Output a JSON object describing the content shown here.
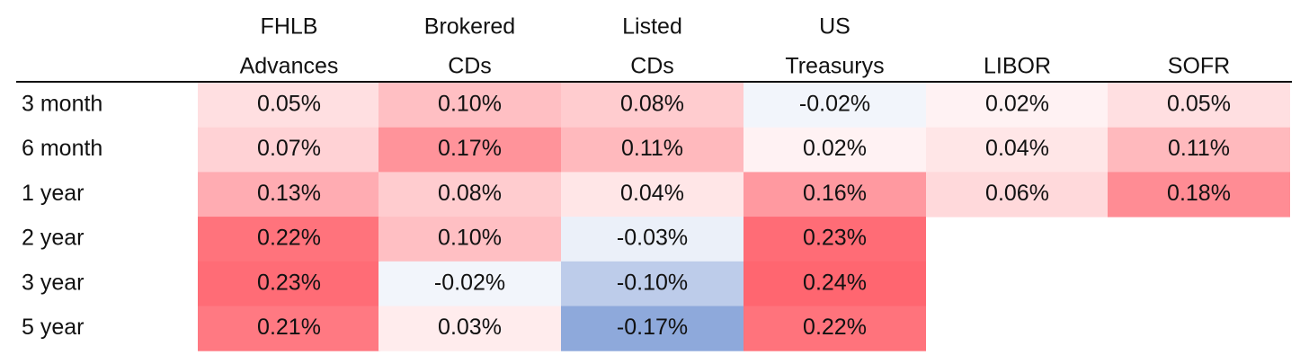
{
  "chart_data": {
    "type": "heatmap",
    "columns": [
      [
        "FHLB",
        "Advances"
      ],
      [
        "Brokered",
        "CDs"
      ],
      [
        "Listed",
        "CDs"
      ],
      [
        "US",
        "Treasurys"
      ],
      [
        "",
        "LIBOR"
      ],
      [
        "",
        "SOFR"
      ]
    ],
    "rows": [
      "3 month",
      "6 month",
      "1 year",
      "2 year",
      "3 year",
      "5 year"
    ],
    "values": [
      [
        0.05,
        0.1,
        0.08,
        -0.02,
        0.02,
        0.05
      ],
      [
        0.07,
        0.17,
        0.11,
        0.02,
        0.04,
        0.11
      ],
      [
        0.13,
        0.08,
        0.04,
        0.16,
        0.06,
        0.18
      ],
      [
        0.22,
        0.1,
        -0.03,
        0.23,
        null,
        null
      ],
      [
        0.23,
        -0.02,
        -0.1,
        0.24,
        null,
        null
      ],
      [
        0.21,
        0.03,
        -0.17,
        0.22,
        null,
        null
      ]
    ],
    "labels": [
      [
        "0.05%",
        "0.10%",
        "0.08%",
        "-0.02%",
        "0.02%",
        "0.05%"
      ],
      [
        "0.07%",
        "0.17%",
        "0.11%",
        "0.02%",
        "0.04%",
        "0.11%"
      ],
      [
        "0.13%",
        "0.08%",
        "0.04%",
        "0.16%",
        "0.06%",
        "0.18%"
      ],
      [
        "0.22%",
        "0.10%",
        "-0.03%",
        "0.23%",
        "",
        ""
      ],
      [
        "0.23%",
        "-0.02%",
        "-0.10%",
        "0.24%",
        "",
        ""
      ],
      [
        "0.21%",
        "0.03%",
        "-0.17%",
        "0.22%",
        "",
        ""
      ]
    ],
    "color_scale": {
      "negative_max": "#8EA9DB",
      "neutral": "#FFFFFF",
      "positive_max": "#FF6670",
      "min": -0.17,
      "max": 0.24
    },
    "grid": false,
    "legend": "none"
  }
}
